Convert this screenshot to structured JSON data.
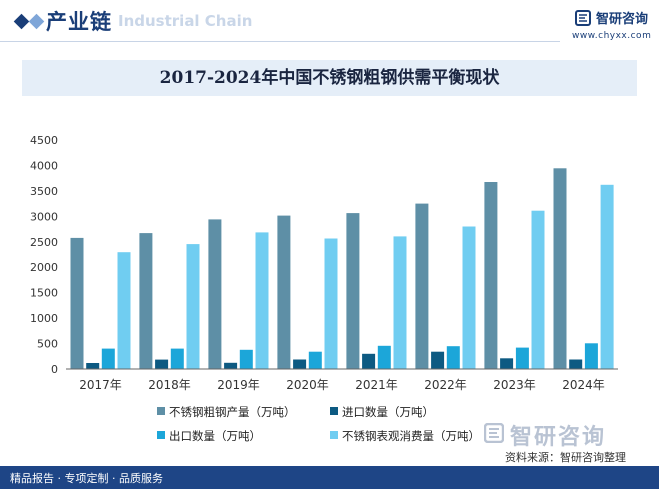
{
  "header": {
    "title": "产业链",
    "subtitle": "Industrial Chain",
    "brand": "智研咨询",
    "url": "www.chyxx.com"
  },
  "footer": {
    "left": "精品报告 · 专项定制 · 品质服务",
    "source": "资料来源：智研咨询整理",
    "watermark_brand": "智研咨询"
  },
  "colors": {
    "header_blue": "#1a3e78",
    "footer_blue": "#1e4586",
    "title_band": "#e5eef8"
  },
  "chart_data": {
    "type": "bar",
    "title": "2017-2024年中国不锈钢粗钢供需平衡现状",
    "categories": [
      "2017年",
      "2018年",
      "2019年",
      "2020年",
      "2021年",
      "2022年",
      "2023年",
      "2024年"
    ],
    "series": [
      {
        "name": "不锈钢粗钢产量（万吨）",
        "color": "#5e8fa6",
        "values": [
          2577,
          2671,
          2940,
          3014,
          3063,
          3250,
          3675,
          3944
        ]
      },
      {
        "name": "进口数量（万吨）",
        "color": "#0d5a82",
        "values": [
          118,
          185,
          122,
          187,
          299,
          340,
          210,
          186
        ]
      },
      {
        "name": "出口数量（万吨）",
        "color": "#1ca6d9",
        "values": [
          400,
          401,
          378,
          340,
          455,
          448,
          420,
          506
        ]
      },
      {
        "name": "不锈钢表观消费量（万吨）",
        "color": "#70cdf1",
        "values": [
          2295,
          2455,
          2684,
          2565,
          2605,
          2800,
          3110,
          3620
        ]
      }
    ],
    "y_ticks": [
      0,
      500,
      1000,
      1500,
      2000,
      2500,
      3000,
      3500,
      4000,
      4500
    ],
    "ylim": [
      0,
      4500
    ],
    "xlabel": "",
    "ylabel": "",
    "grid": false,
    "legend_position": "bottom"
  }
}
